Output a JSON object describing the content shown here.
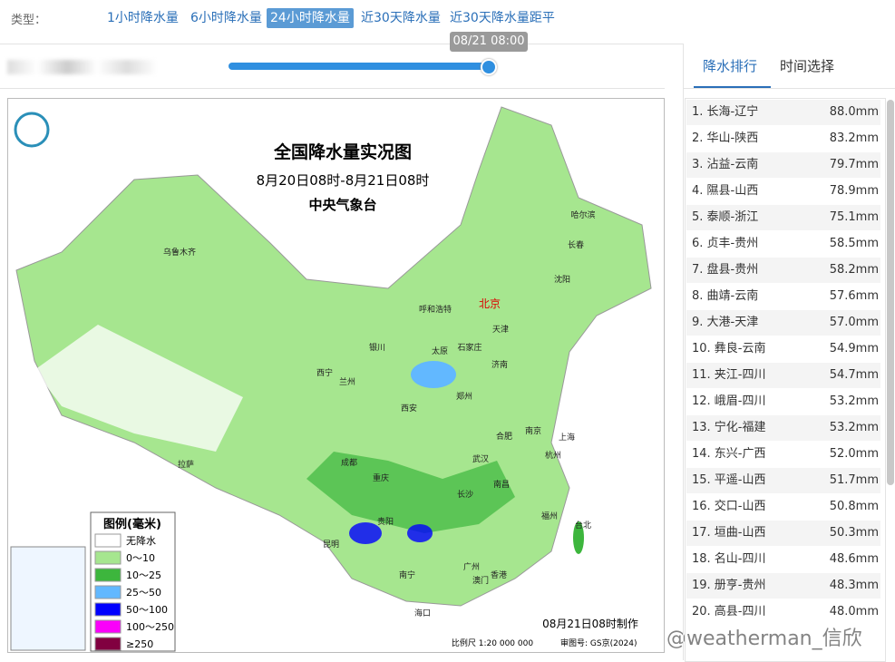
{
  "header": {
    "type_label": "类型：",
    "tabs": [
      "1小时降水量",
      "6小时降水量",
      "24小时降水量",
      "近30天降水量",
      "近30天降水量距平"
    ],
    "active_tab": 2
  },
  "slider": {
    "tooltip": "08/21 08:00"
  },
  "map": {
    "title": "全国降水量实况图",
    "period": "8月20日08时-8月21日08时",
    "agency": "中央气象台",
    "legend_title": "图例(毫米)",
    "legend": [
      {
        "label": "无降水",
        "color": "#ffffff"
      },
      {
        "label": "0～10",
        "color": "#a6e68f"
      },
      {
        "label": "10～25",
        "color": "#3db63d"
      },
      {
        "label": "25～50",
        "color": "#62b8ff"
      },
      {
        "label": "50～100",
        "color": "#0000fe"
      },
      {
        "label": "100～250",
        "color": "#fa00fa"
      },
      {
        "label": "≥250",
        "color": "#810040"
      }
    ],
    "cities": [
      "乌鲁木齐",
      "哈尔滨",
      "长春",
      "沈阳",
      "北京",
      "天津",
      "呼和浩特",
      "银川",
      "太原",
      "石家庄",
      "济南",
      "西宁",
      "兰州",
      "郑州",
      "西安",
      "南京",
      "合肥",
      "上海",
      "杭州",
      "成都",
      "拉萨",
      "武汉",
      "重庆",
      "南昌",
      "长沙",
      "贵阳",
      "福州",
      "台北",
      "昆明",
      "广州",
      "南宁",
      "香港",
      "澳门",
      "海口"
    ],
    "made": "08月21日08时制作",
    "scale": "比例尺 1:20 000 000",
    "approval": "审图号: GS京(2024)"
  },
  "side": {
    "tabs": [
      "降水排行",
      "时间选择"
    ],
    "ranking": [
      [
        "1. 长海-辽宁",
        "88.0mm"
      ],
      [
        "2. 华山-陕西",
        "83.2mm"
      ],
      [
        "3. 沾益-云南",
        "79.7mm"
      ],
      [
        "4. 隰县-山西",
        "78.9mm"
      ],
      [
        "5. 泰顺-浙江",
        "75.1mm"
      ],
      [
        "6. 贞丰-贵州",
        "58.5mm"
      ],
      [
        "7. 盘县-贵州",
        "58.2mm"
      ],
      [
        "8. 曲靖-云南",
        "57.6mm"
      ],
      [
        "9. 大港-天津",
        "57.0mm"
      ],
      [
        "10. 彝良-云南",
        "54.9mm"
      ],
      [
        "11. 夹江-四川",
        "54.7mm"
      ],
      [
        "12. 峨眉-四川",
        "53.2mm"
      ],
      [
        "13. 宁化-福建",
        "53.2mm"
      ],
      [
        "14. 东兴-广西",
        "52.0mm"
      ],
      [
        "15. 平遥-山西",
        "51.7mm"
      ],
      [
        "16. 交口-山西",
        "50.8mm"
      ],
      [
        "17. 垣曲-山西",
        "50.3mm"
      ],
      [
        "18. 名山-四川",
        "48.6mm"
      ],
      [
        "19. 册亨-贵州",
        "48.3mm"
      ],
      [
        "20. 高县-四川",
        "48.0mm"
      ]
    ]
  },
  "watermark": "@weatherman_信欣"
}
